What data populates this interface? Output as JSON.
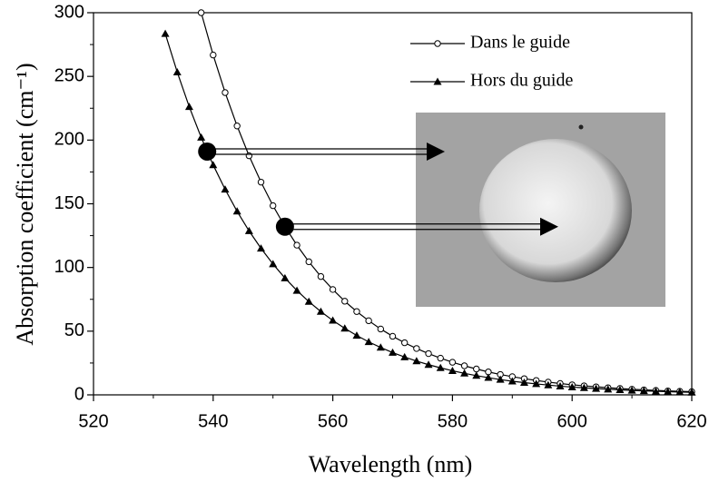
{
  "chart_data": {
    "type": "line",
    "xlabel": "Wavelength (nm)",
    "ylabel": "Absorption coefficient (cm⁻¹)",
    "x": [
      532,
      534,
      536,
      538,
      540,
      542,
      544,
      546,
      548,
      550,
      552,
      554,
      556,
      558,
      560,
      562,
      564,
      566,
      568,
      570,
      572,
      574,
      576,
      578,
      580,
      582,
      584,
      586,
      588,
      590,
      592,
      594,
      596,
      598,
      600,
      602,
      604,
      606,
      608,
      610,
      612,
      614,
      616,
      618,
      620
    ],
    "series": [
      {
        "name": "Dans le guide",
        "marker": "open-circle",
        "color": "#000000",
        "values": [
          null,
          null,
          null,
          300,
          266.8,
          237.3,
          211.1,
          187.7,
          167.0,
          148.5,
          132.1,
          117.5,
          104.5,
          92.9,
          82.7,
          73.5,
          65.4,
          58.2,
          51.7,
          46.0,
          40.9,
          36.4,
          32.4,
          28.8,
          25.6,
          22.8,
          20.3,
          18.0,
          16.0,
          14.3,
          12.7,
          11.3,
          10.0,
          8.9,
          7.9,
          7.1,
          6.3,
          5.6,
          5.0,
          4.4,
          3.9,
          3.5,
          3.1,
          2.8,
          2.5
        ]
      },
      {
        "name": "Hors du guide",
        "marker": "filled-triangle",
        "color": "#000000",
        "values": [
          283.5,
          253.3,
          226.2,
          202.1,
          180.5,
          161.3,
          144.1,
          128.7,
          115.0,
          102.7,
          91.7,
          81.9,
          73.2,
          65.4,
          58.4,
          52.2,
          46.6,
          41.6,
          37.2,
          33.2,
          29.7,
          26.5,
          23.7,
          21.2,
          18.9,
          16.9,
          15.1,
          13.5,
          12.0,
          10.7,
          9.6,
          8.6,
          7.7,
          6.8,
          6.1,
          5.5,
          4.9,
          4.4,
          3.9,
          3.5,
          3.1,
          2.8,
          2.5,
          2.2,
          2.0
        ]
      }
    ],
    "markers": [
      {
        "x": 539,
        "y": 191
      },
      {
        "x": 552,
        "y": 132
      }
    ],
    "xlim": [
      520,
      620
    ],
    "xticks": [
      520,
      540,
      560,
      580,
      600,
      620
    ],
    "ylim": [
      0,
      300
    ],
    "yticks": [
      0,
      50,
      100,
      150,
      200,
      250,
      300
    ],
    "legend": "upper right"
  }
}
